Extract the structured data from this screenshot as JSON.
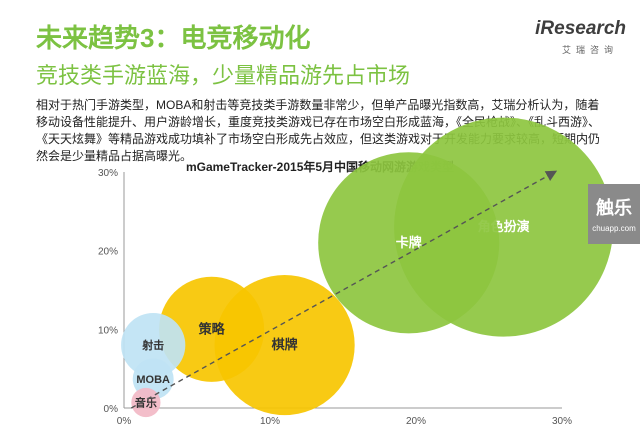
{
  "header": {
    "title": "未来趋势3：电竞移动化",
    "subtitle": "竞技类手游蓝海，少量精品游先占市场",
    "logo_main": "iResearch",
    "logo_sub": "艾瑞咨询",
    "description": "相对于热门手游类型，MOBA和射击等竞技类手游数量非常少，但单产品曝光指数高，艾瑞分析认为，随着移动设备性能提升、用户游龄增长，重度竞技类游戏已存在市场空白形成蓝海，《全民枪战》、《乱斗西游》、《天天炫舞》等精品游戏成功填补了市场空白形成先占效应，但这类游戏对于开发能力要求较高，短期内仍然会是少量精品占据高曝光。"
  },
  "watermark": {
    "main": "触乐",
    "sub": "chuapp.com"
  },
  "colors": {
    "green": "#8dc63f",
    "yellow": "#f7c600",
    "light_blue": "#bfe3f4",
    "trend": "#555555"
  },
  "chart_data": {
    "type": "scatter",
    "title": "mGameTracker-2015年5月中国移动网游游戏类型",
    "xlim": [
      0,
      30
    ],
    "ylim": [
      0,
      30
    ],
    "x_ticks": [
      "0%",
      "10%",
      "20%",
      "30%"
    ],
    "y_ticks": [
      "0%",
      "10%",
      "20%",
      "30%"
    ],
    "grid": false,
    "trend_line": {
      "from": [
        0.5,
        0
      ],
      "to": [
        29.5,
        30
      ]
    },
    "points": [
      {
        "label": "角色扮演",
        "x": 26,
        "y": 23,
        "size": 7.5,
        "color": "#8dc63f"
      },
      {
        "label": "卡牌",
        "x": 19.5,
        "y": 21,
        "size": 6.2,
        "color": "#8dc63f"
      },
      {
        "label": "棋牌",
        "x": 11,
        "y": 8,
        "size": 4.8,
        "color": "#f7c600"
      },
      {
        "label": "策略",
        "x": 6,
        "y": 10,
        "size": 3.6,
        "color": "#f7c600"
      },
      {
        "label": "射击",
        "x": 2,
        "y": 8,
        "size": 2.2,
        "color": "#bfe3f4"
      },
      {
        "label": "MOBA",
        "x": 2,
        "y": 3.7,
        "size": 1.4,
        "color": "#bfe3f4"
      },
      {
        "label": "音乐",
        "x": 1.5,
        "y": 0.7,
        "size": 1.0,
        "color": "#f2b8c6"
      }
    ]
  }
}
